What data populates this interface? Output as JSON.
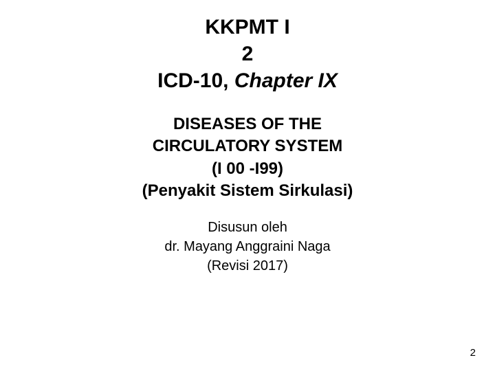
{
  "title": {
    "line1": "KKPMT  I",
    "line2": "2",
    "line3_regular": "ICD-10, ",
    "line3_italic": "Chapter  IX"
  },
  "subtitle": {
    "line1": "DISEASES OF THE",
    "line2": "CIRCULATORY SYSTEM",
    "line3": "(I 00 -I99)",
    "line4": "(Penyakit Sistem Sirkulasi)"
  },
  "author": {
    "line1": "Disusun oleh",
    "line2": "dr. Mayang Anggraini Naga",
    "line3": "(Revisi  2017)"
  },
  "pageNumber": "2",
  "styling": {
    "background_color": "#ffffff",
    "text_color": "#000000",
    "title_fontsize": 30,
    "subtitle_fontsize": 24,
    "author_fontsize": 20,
    "pagenum_fontsize": 15,
    "font_family": "Arial"
  }
}
